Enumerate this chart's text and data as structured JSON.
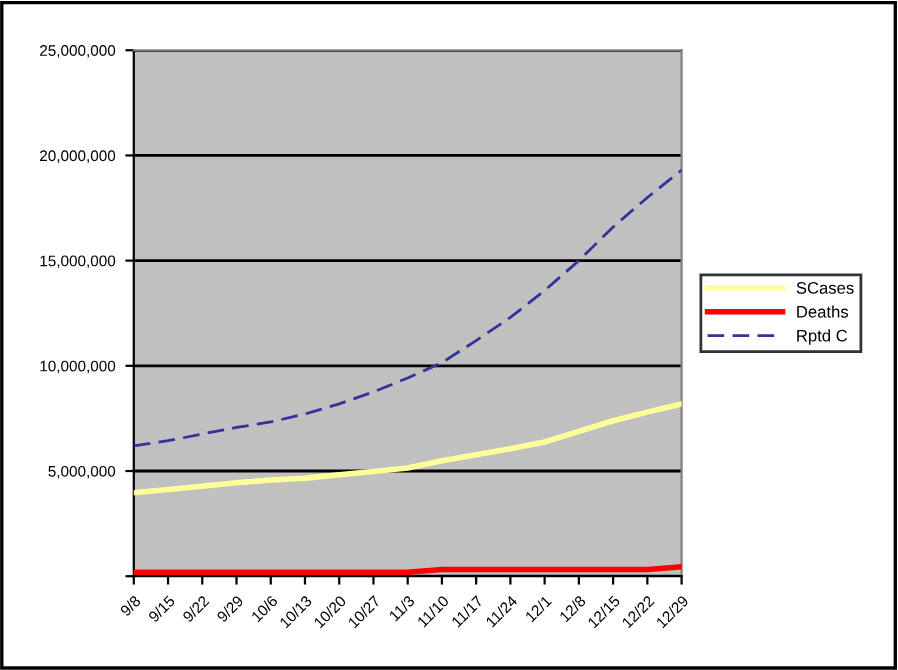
{
  "chart_data": {
    "type": "line",
    "categories": [
      "9/8",
      "9/15",
      "9/22",
      "9/29",
      "10/6",
      "10/13",
      "10/20",
      "10/27",
      "11/3",
      "11/10",
      "11/17",
      "11/24",
      "12/1",
      "12/8",
      "12/15",
      "12/22",
      "12/29"
    ],
    "series": [
      {
        "name": "SCases",
        "color": "#ffff99",
        "line_style": "solid",
        "values": [
          3970000,
          4120000,
          4280000,
          4440000,
          4570000,
          4660000,
          4820000,
          4980000,
          5140000,
          5490000,
          5770000,
          6060000,
          6380000,
          6880000,
          7390000,
          7800000,
          8190000
        ]
      },
      {
        "name": "Deaths",
        "color": "#ff0000",
        "line_style": "solid",
        "values": [
          190000,
          190000,
          190000,
          190000,
          190000,
          190000,
          190000,
          190000,
          190000,
          320000,
          320000,
          320000,
          320000,
          320000,
          320000,
          320000,
          450000
        ]
      },
      {
        "name": "Rptd C",
        "color": "#333399",
        "line_style": "dashed",
        "values": [
          6190000,
          6440000,
          6760000,
          7070000,
          7330000,
          7710000,
          8190000,
          8760000,
          9420000,
          10150000,
          11200000,
          12300000,
          13580000,
          15000000,
          16600000,
          18000000,
          19300000
        ]
      }
    ],
    "ylim": [
      0,
      25000000
    ],
    "yticks": [
      {
        "value": 0,
        "label": null
      },
      {
        "value": 5000000,
        "label": "5,000,000"
      },
      {
        "value": 10000000,
        "label": "10,000,000"
      },
      {
        "value": 15000000,
        "label": "15,000,000"
      },
      {
        "value": 20000000,
        "label": "20,000,000"
      },
      {
        "value": 25000000,
        "label": "25,000,000"
      }
    ],
    "grid": "y",
    "legend": "right",
    "marker": "none"
  }
}
